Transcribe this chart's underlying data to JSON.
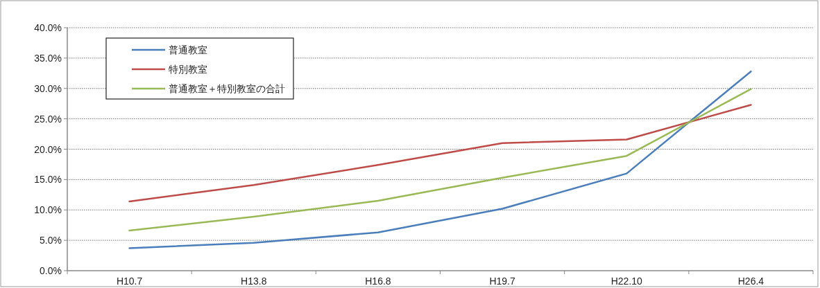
{
  "chart_data": {
    "type": "line",
    "categories": [
      "H10.7",
      "H13.8",
      "H16.8",
      "H19.7",
      "H22.10",
      "H26.4"
    ],
    "series": [
      {
        "name": "普通教室",
        "color": "#4a7ebb",
        "values": [
          3.7,
          4.6,
          6.3,
          10.2,
          16.0,
          32.8
        ]
      },
      {
        "name": "特別教室",
        "color": "#be4b48",
        "values": [
          11.4,
          14.1,
          17.4,
          21.0,
          21.6,
          27.3
        ]
      },
      {
        "name": "普通教室＋特別教室の合計",
        "color": "#98b954",
        "values": [
          6.6,
          8.9,
          11.5,
          15.3,
          18.9,
          29.9
        ]
      }
    ],
    "ylim": [
      0,
      40
    ],
    "yticks": [
      {
        "value": 0,
        "label": "0.0%"
      },
      {
        "value": 5,
        "label": "5.0%"
      },
      {
        "value": 10,
        "label": "10.0%"
      },
      {
        "value": 15,
        "label": "15.0%"
      },
      {
        "value": 20,
        "label": "20.0%"
      },
      {
        "value": 25,
        "label": "25.0%"
      },
      {
        "value": 30,
        "label": "30.0%"
      },
      {
        "value": 35,
        "label": "35.0%"
      },
      {
        "value": 40,
        "label": "40.0%"
      }
    ],
    "grid": "y",
    "legend": "top left",
    "marker": "none",
    "line_style": "solid"
  }
}
